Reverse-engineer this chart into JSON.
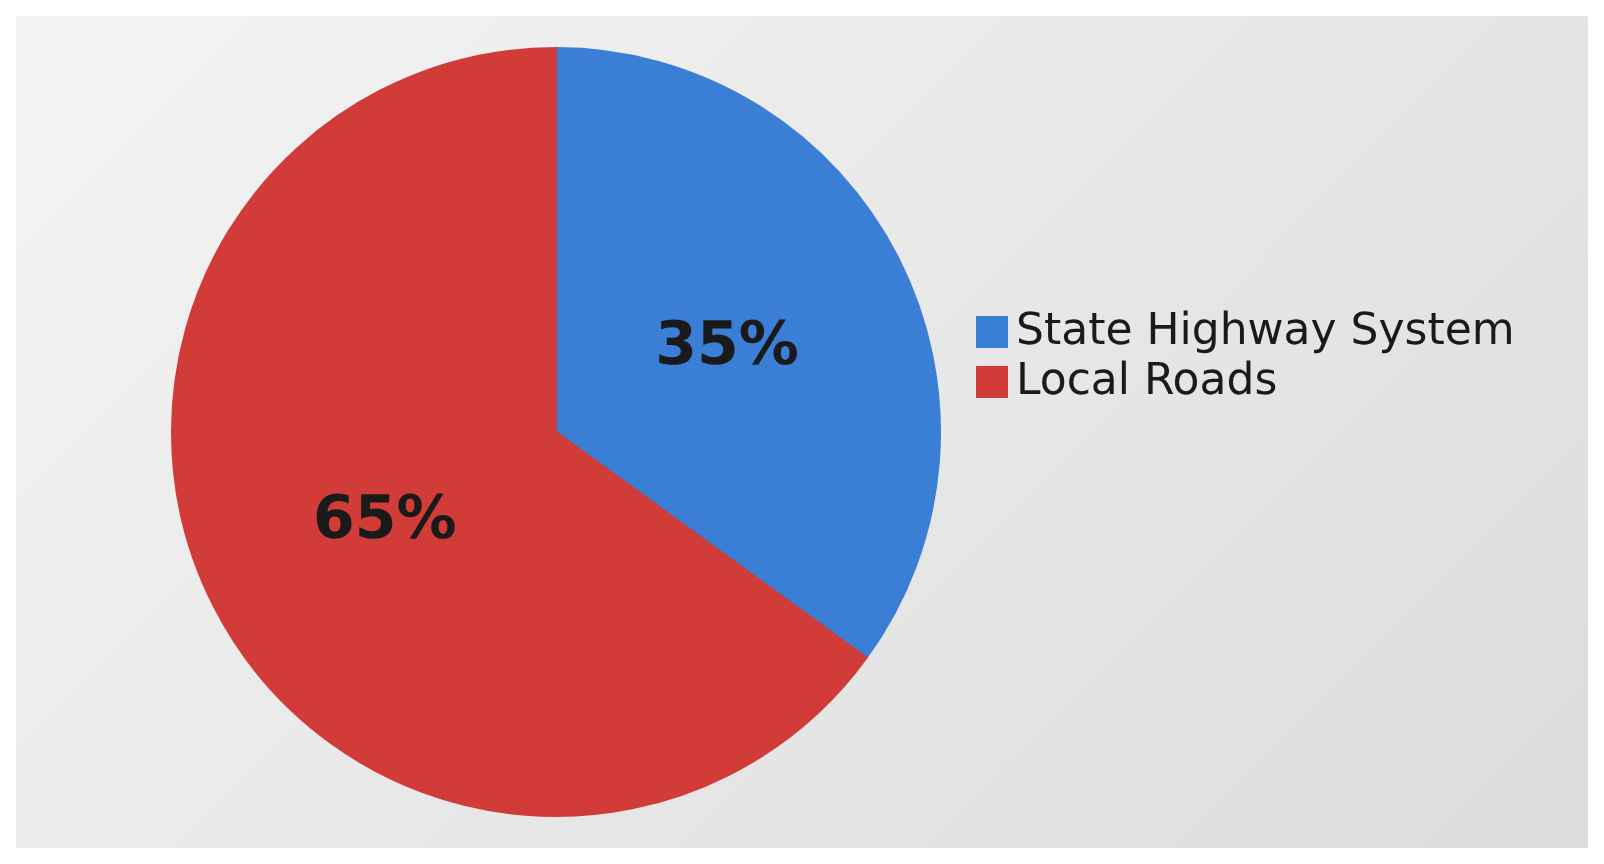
{
  "chart_data": {
    "type": "pie",
    "categories": [
      "State Highway System",
      "Local Roads"
    ],
    "values": [
      35,
      65
    ],
    "colors": [
      "#3a7fd5",
      "#d13b38"
    ],
    "value_labels": [
      "35%",
      "65%"
    ],
    "legend": "right"
  }
}
